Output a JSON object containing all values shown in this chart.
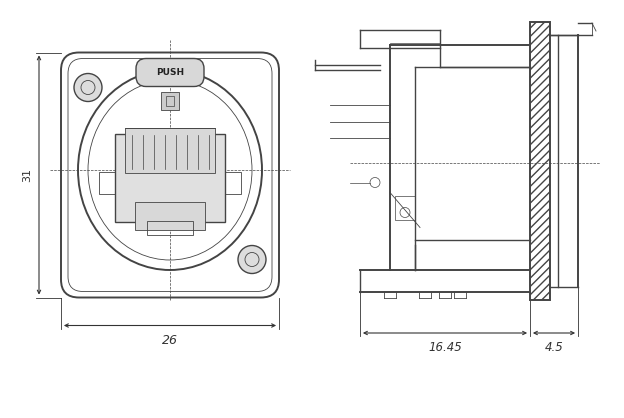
{
  "bg_color": "#ffffff",
  "line_color": "#444444",
  "dim_color": "#333333",
  "fig_width": 6.24,
  "fig_height": 4.18,
  "dpi": 100,
  "labels": {
    "push": "PUSH",
    "dim_31": "31",
    "dim_26": "26",
    "dim_1645": "16.45",
    "dim_45": "4.5"
  }
}
